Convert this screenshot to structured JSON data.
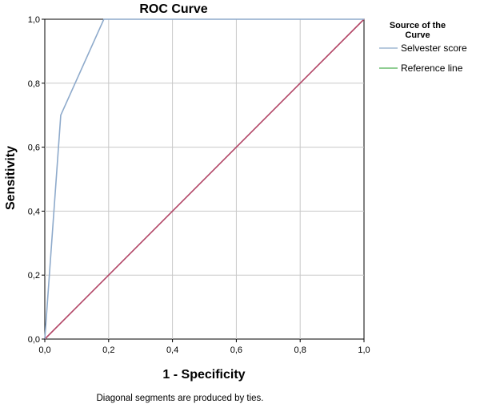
{
  "chart_data": {
    "type": "line",
    "title": "ROC Curve",
    "xlabel": "1 - Specificity",
    "ylabel": "Sensitivity",
    "xlim": [
      0,
      1
    ],
    "ylim": [
      0,
      1
    ],
    "xticks": [
      0,
      0.2,
      0.4,
      0.6,
      0.8,
      1
    ],
    "yticks": [
      0,
      0.2,
      0.4,
      0.6,
      0.8,
      1
    ],
    "xtick_labels": [
      "0,0",
      "0,2",
      "0,4",
      "0,6",
      "0,8",
      "1,0"
    ],
    "ytick_labels": [
      "0,0",
      "0,2",
      "0,4",
      "0,6",
      "0,8",
      "1,0"
    ],
    "grid": true,
    "legend": {
      "position": "right",
      "title_lines": [
        "Source of the",
        "Curve"
      ]
    },
    "series": [
      {
        "name": "Selvester score",
        "color": "#8eaacb",
        "x": [
          0,
          0.05,
          0.185,
          1
        ],
        "y": [
          0,
          0.7,
          1,
          1
        ]
      },
      {
        "name": "Reference line",
        "color": "#b24566",
        "legend_color": "#4caf50",
        "x": [
          0,
          1
        ],
        "y": [
          0,
          1
        ]
      }
    ],
    "footnote": "Diagonal segments are produced by ties."
  }
}
